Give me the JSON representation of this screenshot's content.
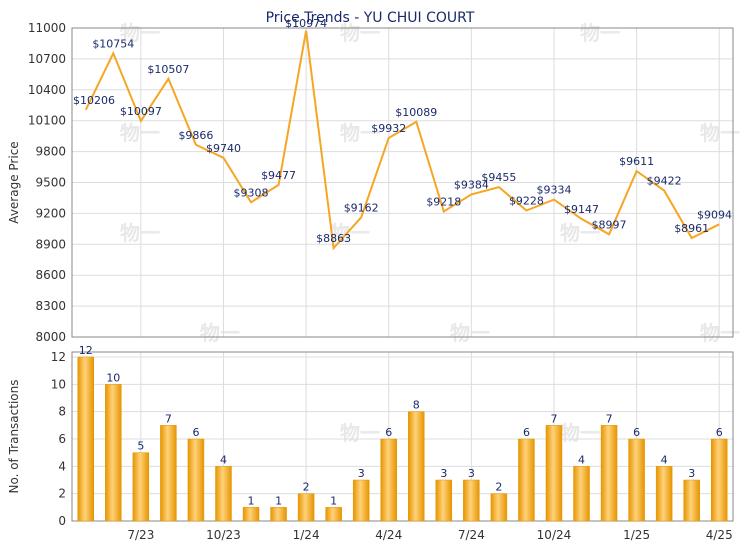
{
  "title": "Price Trends - YU CHUI COURT",
  "watermark": "物一",
  "colors": {
    "line": "#f5a623",
    "bar_dark": "#e69500",
    "bar_light": "#ffd27a",
    "grid": "#dddddd",
    "plot_border": "#888888",
    "label_text": "#1a2a6c",
    "axis_text": "#333333",
    "watermark": "#e8e8e8"
  },
  "chart_data": [
    {
      "type": "line",
      "name": "price",
      "ylabel": "Average Price",
      "ylim": [
        8000,
        11000
      ],
      "yticks": [
        8000,
        8300,
        8600,
        8900,
        9200,
        9500,
        9800,
        10100,
        10400,
        10700,
        11000
      ],
      "grid": true,
      "values": [
        10206,
        10754,
        10097,
        10507,
        9866,
        9740,
        9308,
        9477,
        10974,
        8863,
        9162,
        9932,
        10089,
        9218,
        9384,
        9455,
        9228,
        9334,
        9147,
        8997,
        9611,
        9422,
        8961,
        9094
      ],
      "labels": [
        "$10206",
        "$10754",
        "$10097",
        "$10507",
        "$9866",
        "$9740",
        "$9308",
        "$9477",
        "$10974",
        "$8863",
        "$9162",
        "$9932",
        "$10089",
        "$9218",
        "$9384",
        "$9455",
        "$9228",
        "$9334",
        "$9147",
        "$8997",
        "$9611",
        "$9422",
        "$8961",
        "$9094"
      ]
    },
    {
      "type": "bar",
      "name": "transactions",
      "ylabel": "No. of Transactions",
      "ylim": [
        0,
        12
      ],
      "yticks": [
        0,
        2,
        4,
        6,
        8,
        10,
        12
      ],
      "grid": true,
      "values": [
        12,
        10,
        5,
        7,
        6,
        4,
        1,
        1,
        2,
        1,
        3,
        6,
        8,
        3,
        3,
        2,
        6,
        7,
        4,
        7,
        6,
        4,
        3,
        6
      ]
    }
  ],
  "xaxis": {
    "months": 24,
    "tick_labels": [
      {
        "label": "7/23",
        "index": 2
      },
      {
        "label": "10/23",
        "index": 5
      },
      {
        "label": "1/24",
        "index": 8
      },
      {
        "label": "4/24",
        "index": 11
      },
      {
        "label": "7/24",
        "index": 14
      },
      {
        "label": "10/24",
        "index": 17
      },
      {
        "label": "1/25",
        "index": 20
      },
      {
        "label": "4/25",
        "index": 23
      }
    ]
  }
}
